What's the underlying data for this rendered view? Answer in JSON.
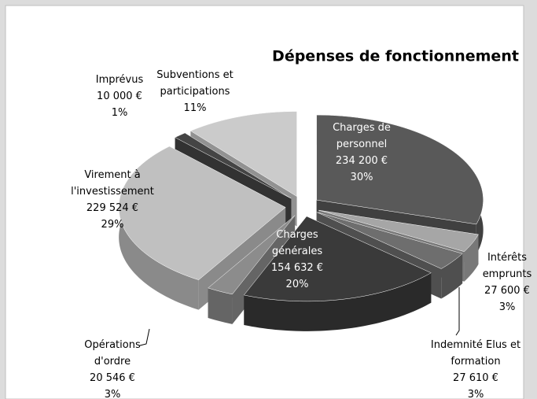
{
  "chart_data": {
    "type": "pie3d",
    "title": "Dépenses de fonctionnement",
    "categories": [
      [
        "Charges de",
        "personnel"
      ],
      [
        "Intérêts",
        "emprunts"
      ],
      [
        "Indemnité Elus et",
        "formation"
      ],
      [
        "Charges",
        "générales"
      ],
      [
        "Opérations",
        "d'ordre"
      ],
      [
        "Virement à",
        "l'investissement"
      ],
      [
        "Imprévus"
      ],
      [
        "Subventions et",
        "participations"
      ]
    ],
    "values": [
      234200,
      27600,
      27610,
      154632,
      20546,
      229524,
      10000,
      87000
    ],
    "value_labels": [
      "234 200 €",
      "27 600 €",
      "27 610 €",
      "154 632 €",
      "20 546 €",
      "229 524 €",
      "10 000 €",
      null
    ],
    "percents": [
      30,
      3,
      3,
      20,
      3,
      29,
      1,
      11
    ],
    "percent_labels": [
      "30%",
      "3%",
      "3%",
      "20%",
      "3%",
      "29%",
      "1%",
      "11%"
    ],
    "colors": [
      "#595959",
      "#a6a6a6",
      "#6e6e6e",
      "#3a3a3a",
      "#8c8c8c",
      "#c0c0c0",
      "#454545",
      "#cbcbcb"
    ]
  }
}
